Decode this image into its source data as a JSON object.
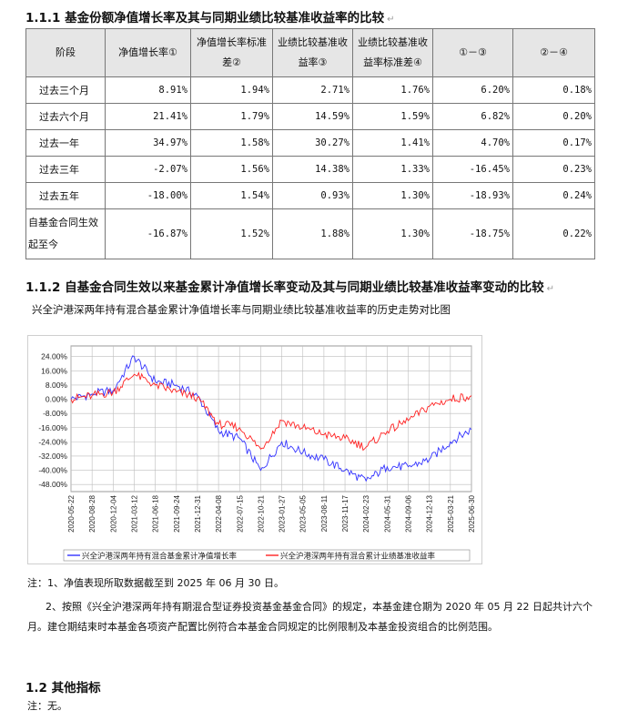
{
  "section1": {
    "title": "1.1.1 基金份额净值增长率及其与同期业绩比较基准收益率的比较"
  },
  "table": {
    "headers": [
      "阶段",
      "净值增长率①",
      "净值增长率标准差②",
      "业绩比较基准收益率③",
      "业绩比较基准收益率标准差④",
      "①－③",
      "②－④"
    ],
    "rows": [
      [
        "过去三个月",
        "8.91%",
        "1.94%",
        "2.71%",
        "1.76%",
        "6.20%",
        "0.18%"
      ],
      [
        "过去六个月",
        "21.41%",
        "1.79%",
        "14.59%",
        "1.59%",
        "6.82%",
        "0.20%"
      ],
      [
        "过去一年",
        "34.97%",
        "1.58%",
        "30.27%",
        "1.41%",
        "4.70%",
        "0.17%"
      ],
      [
        "过去三年",
        "-2.07%",
        "1.56%",
        "14.38%",
        "1.33%",
        "-16.45%",
        "0.23%"
      ],
      [
        "过去五年",
        "-18.00%",
        "1.54%",
        "0.93%",
        "1.30%",
        "-18.93%",
        "0.24%"
      ],
      [
        "自基金合同生效起至今",
        "-16.87%",
        "1.52%",
        "1.88%",
        "1.30%",
        "-18.75%",
        "0.22%"
      ]
    ]
  },
  "section2": {
    "title": "1.1.2 自基金合同生效以来基金累计净值增长率变动及其与同期业绩比较基准收益率变动的比较"
  },
  "chart_title": "兴全沪港深两年持有混合基金累计净值增长率与同期业绩比较基准收益率的历史走势对比图",
  "chart_data": {
    "type": "line",
    "x": [
      "2020-05-22",
      "2020-08-28",
      "2020-12-04",
      "2021-03-12",
      "2021-06-18",
      "2021-09-24",
      "2021-12-31",
      "2022-04-08",
      "2022-07-15",
      "2022-10-21",
      "2023-01-27",
      "2023-05-05",
      "2023-08-11",
      "2023-11-17",
      "2024-02-23",
      "2024-05-31",
      "2024-09-06",
      "2024-12-13",
      "2025-03-21",
      "2025-06-30"
    ],
    "series": [
      {
        "name": "兴全沪港深两年持有混合基金累计净值增长率",
        "color": "#3333ff",
        "values": [
          0,
          3,
          5,
          24,
          10,
          8,
          2,
          -18,
          -22,
          -40,
          -24,
          -30,
          -34,
          -40,
          -46,
          -38,
          -38,
          -34,
          -24,
          -17
        ]
      },
      {
        "name": "兴全沪港深两年持有混合累计业绩基准收益率",
        "color": "#ff2222",
        "values": [
          0,
          2,
          4,
          14,
          8,
          4,
          1,
          -14,
          -16,
          -28,
          -12,
          -16,
          -20,
          -22,
          -27,
          -18,
          -12,
          -4,
          0,
          2
        ]
      }
    ],
    "yticks": [
      "24.00%",
      "16.00%",
      "8.00%",
      "0.00%",
      "-8.00%",
      "-16.00%",
      "-24.00%",
      "-32.00%",
      "-40.00%",
      "-48.00%"
    ],
    "ylim": [
      -52,
      30
    ],
    "grid": true,
    "legend": "bottom"
  },
  "notes": {
    "note1": "注：1、净值表现所取数据截至到 2025 年 06 月 30 日。",
    "note2": "2、按照《兴全沪港深两年持有期混合型证券投资基金基金合同》的规定，本基金建仓期为 2020 年 05 月 22 日起共计六个月。建仓期结束时本基金各项资产配置比例符合本基金合同规定的比例限制及本基金投资组合的比例范围。"
  },
  "section3": {
    "title": "1.2 其他指标",
    "text": "注：无。"
  },
  "colors": {
    "header_bg": "#e6e6e6",
    "grid": "#bdbdbd",
    "fund": "#3333ff",
    "bench": "#ff2222"
  }
}
